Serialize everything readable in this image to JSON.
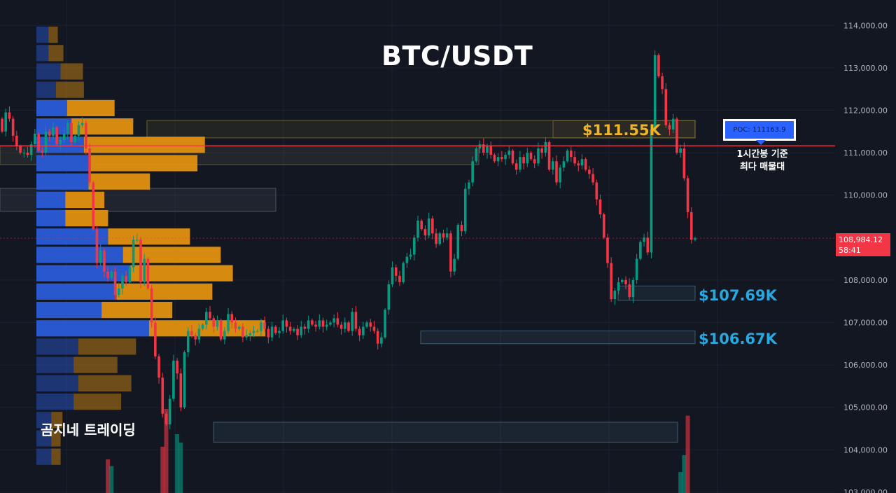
{
  "header": {
    "title": "BTC/USDT"
  },
  "watermark": "곰지네 트레이딩",
  "colors": {
    "background": "#131722",
    "grid": "#1e2230",
    "bull": "#089981",
    "bear": "#f23645",
    "profile_buy": "#2a5bd7",
    "profile_sell": "#e0900f",
    "poc_line": "#f23645",
    "resistance_label": "#f0b429",
    "support_label": "#29a8e0"
  },
  "zones": {
    "resistance": {
      "label": "$111.55K"
    },
    "support_1": {
      "label": "$107.69K"
    },
    "support_2": {
      "label": "$106.67K"
    }
  },
  "poc": {
    "badge": "POC: 111163.9",
    "caption_line1": "1시간봉 기준",
    "caption_line2": "최다 매물대"
  },
  "current_price": {
    "value": "108,984.12",
    "countdown": "58:41"
  },
  "chart_data": {
    "type": "candlestick",
    "title": "BTC/USDT",
    "ylim": [
      102900,
      114400
    ],
    "y_ticks": [
      "114,000.00",
      "113,000.00",
      "112,000.00",
      "111,000.00",
      "110,000.00",
      "108,000.00",
      "107,000.00",
      "106,000.00",
      "105,000.00",
      "104,000.00",
      "103,000.00"
    ],
    "poc_value": 111163.9,
    "current_price": 108984.12,
    "zones": [
      {
        "name": "$111.55K",
        "low": 111350,
        "high": 111760
      },
      {
        "name": "$107.69K",
        "low": 107520,
        "high": 107860
      },
      {
        "name": "$106.67K",
        "low": 106500,
        "high": 106800
      },
      {
        "low": 104180,
        "high": 104650
      },
      {
        "low": 110720,
        "high": 111160
      },
      {
        "low": 109620,
        "high": 110160
      }
    ],
    "closes": [
      111500,
      111950,
      111800,
      111400,
      111150,
      111000,
      111000,
      110950,
      111200,
      111450,
      111050,
      111000,
      111500,
      111400,
      111600,
      111200,
      111300,
      111450,
      111700,
      111250,
      111400,
      111650,
      111700,
      111100,
      110300,
      109200,
      108400,
      108700,
      108200,
      108050,
      108200,
      107650,
      107800,
      108100,
      107950,
      108300,
      108950,
      108950,
      107950,
      108500,
      107800,
      107000,
      106200,
      105700,
      104850,
      104600,
      105200,
      106100,
      105800,
      105000,
      106300,
      106800,
      106700,
      106600,
      106850,
      106950,
      107250,
      107100,
      106900,
      107050,
      106600,
      106800,
      107200,
      107000,
      106850,
      106900,
      106650,
      106700,
      106750,
      106800,
      106800,
      107000,
      106850,
      106650,
      106900,
      106750,
      106800,
      107050,
      106900,
      106800,
      106850,
      106700,
      106900,
      106850,
      107050,
      106950,
      106900,
      107050,
      106900,
      106950,
      107000,
      107100,
      106950,
      106850,
      107000,
      106800,
      107250,
      106850,
      106700,
      106900,
      107000,
      106900,
      106800,
      106500,
      106650,
      107300,
      107900,
      108300,
      108100,
      107950,
      108400,
      108550,
      108600,
      109000,
      109400,
      109200,
      109050,
      109450,
      109100,
      108850,
      109100,
      109000,
      109100,
      108200,
      108500,
      109300,
      109150,
      110150,
      110300,
      110800,
      111100,
      111200,
      111000,
      111150,
      110950,
      110800,
      110900,
      110850,
      110950,
      111050,
      110750,
      110600,
      110900,
      110750,
      111000,
      110850,
      110750,
      111100,
      111000,
      111250,
      110600,
      110800,
      110300,
      110650,
      110800,
      111050,
      110900,
      110750,
      110700,
      110850,
      110600,
      110500,
      110300,
      109900,
      109550,
      109000,
      108400,
      107550,
      107750,
      107950,
      108000,
      107900,
      107600,
      108000,
      108500,
      108900,
      109000,
      108650,
      111550,
      113300,
      112800,
      112500,
      111650,
      111550,
      111800,
      111000,
      111100,
      110400,
      109600,
      108950,
      108984.12
    ],
    "initial_open": 111800,
    "volume_profile": [
      {
        "buy": 0.13,
        "sell": 0.1
      },
      {
        "buy": 0.13,
        "sell": 0.16
      },
      {
        "buy": 0.26,
        "sell": 0.24
      },
      {
        "buy": 0.21,
        "sell": 0.3
      },
      {
        "buy": 0.33,
        "sell": 0.51
      },
      {
        "buy": 0.38,
        "sell": 0.66
      },
      {
        "buy": 0.51,
        "sell": 1.3
      },
      {
        "buy": 0.57,
        "sell": 1.16
      },
      {
        "buy": 0.56,
        "sell": 0.66
      },
      {
        "buy": 0.31,
        "sell": 0.42
      },
      {
        "buy": 0.31,
        "sell": 0.46
      },
      {
        "buy": 0.77,
        "sell": 0.88
      },
      {
        "buy": 0.93,
        "sell": 1.05
      },
      {
        "buy": 1.01,
        "sell": 1.1
      },
      {
        "buy": 0.86,
        "sell": 1.03
      },
      {
        "buy": 0.7,
        "sell": 0.76
      },
      {
        "buy": 1.21,
        "sell": 1.25
      },
      {
        "buy": 0.45,
        "sell": 0.62
      },
      {
        "buy": 0.4,
        "sell": 0.47
      },
      {
        "buy": 0.45,
        "sell": 0.57
      },
      {
        "buy": 0.4,
        "sell": 0.51
      },
      {
        "buy": 0.16,
        "sell": 0.12
      },
      {
        "buy": 0.16,
        "sell": 0.1
      },
      {
        "buy": 0.16,
        "sell": 0.1
      }
    ],
    "volume_spikes": [
      {
        "index": 44,
        "value": 0.55,
        "dir": "bear"
      },
      {
        "index": 45,
        "value": 1.0,
        "dir": "bear"
      },
      {
        "index": 48,
        "value": 0.7,
        "dir": "bull"
      },
      {
        "index": 49,
        "value": 0.6,
        "dir": "bull"
      },
      {
        "index": 29,
        "value": 0.4,
        "dir": "bear"
      },
      {
        "index": 30,
        "value": 0.32,
        "dir": "bull"
      },
      {
        "index": 186,
        "value": 0.25,
        "dir": "bull"
      },
      {
        "index": 187,
        "value": 0.45,
        "dir": "bull"
      },
      {
        "index": 188,
        "value": 0.92,
        "dir": "bear"
      }
    ]
  }
}
